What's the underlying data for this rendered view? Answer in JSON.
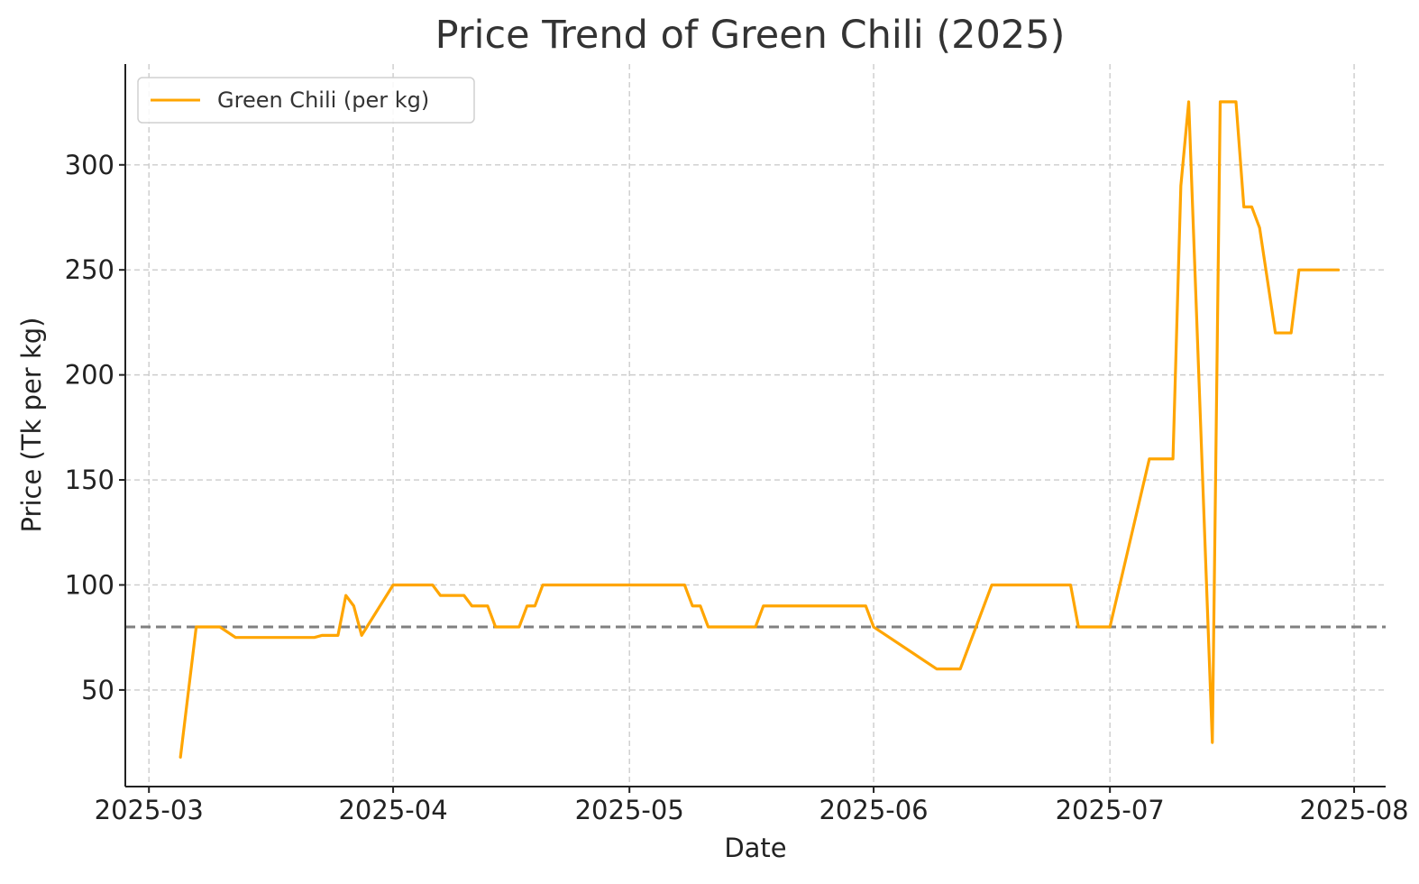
{
  "chart_data": {
    "type": "line",
    "title": "Price Trend of Green Chili (2025)",
    "xlabel": "Date",
    "ylabel": "Price (Tk per kg)",
    "x_axis_type": "date",
    "xlim": [
      "2025-02-26",
      "2025-08-05"
    ],
    "ylim": [
      4,
      348
    ],
    "x_ticks": [
      "2025-03-01",
      "2025-04-01",
      "2025-05-01",
      "2025-06-01",
      "2025-07-01",
      "2025-08-01"
    ],
    "x_tick_labels": [
      "2025-03",
      "2025-04",
      "2025-05",
      "2025-06",
      "2025-07",
      "2025-08"
    ],
    "y_ticks": [
      50,
      100,
      150,
      200,
      250,
      300
    ],
    "y_tick_labels": [
      "50",
      "100",
      "150",
      "200",
      "250",
      "300"
    ],
    "grid": true,
    "legend_position": "top-left",
    "series": [
      {
        "name": "Green Chili (per kg)",
        "color": "#ffa500",
        "points": [
          [
            "2025-03-05",
            18
          ],
          [
            "2025-03-07",
            80
          ],
          [
            "2025-03-10",
            80
          ],
          [
            "2025-03-12",
            75
          ],
          [
            "2025-03-22",
            75
          ],
          [
            "2025-03-23",
            76
          ],
          [
            "2025-03-25",
            76
          ],
          [
            "2025-03-26",
            95
          ],
          [
            "2025-03-27",
            90
          ],
          [
            "2025-03-28",
            76
          ],
          [
            "2025-04-01",
            100
          ],
          [
            "2025-04-06",
            100
          ],
          [
            "2025-04-07",
            95
          ],
          [
            "2025-04-10",
            95
          ],
          [
            "2025-04-11",
            90
          ],
          [
            "2025-04-13",
            90
          ],
          [
            "2025-04-14",
            80
          ],
          [
            "2025-04-17",
            80
          ],
          [
            "2025-04-18",
            90
          ],
          [
            "2025-04-19",
            90
          ],
          [
            "2025-04-20",
            100
          ],
          [
            "2025-05-08",
            100
          ],
          [
            "2025-05-09",
            90
          ],
          [
            "2025-05-10",
            90
          ],
          [
            "2025-05-11",
            80
          ],
          [
            "2025-05-17",
            80
          ],
          [
            "2025-05-18",
            90
          ],
          [
            "2025-05-31",
            90
          ],
          [
            "2025-06-01",
            80
          ],
          [
            "2025-06-09",
            60
          ],
          [
            "2025-06-12",
            60
          ],
          [
            "2025-06-16",
            100
          ],
          [
            "2025-06-26",
            100
          ],
          [
            "2025-06-27",
            80
          ],
          [
            "2025-07-01",
            80
          ],
          [
            "2025-07-06",
            160
          ],
          [
            "2025-07-09",
            160
          ],
          [
            "2025-07-10",
            290
          ],
          [
            "2025-07-11",
            330
          ],
          [
            "2025-07-14",
            25
          ],
          [
            "2025-07-15",
            330
          ],
          [
            "2025-07-17",
            330
          ],
          [
            "2025-07-18",
            280
          ],
          [
            "2025-07-19",
            280
          ],
          [
            "2025-07-20",
            270
          ],
          [
            "2025-07-22",
            220
          ],
          [
            "2025-07-24",
            220
          ],
          [
            "2025-07-25",
            250
          ],
          [
            "2025-07-30",
            250
          ]
        ]
      }
    ],
    "reference_lines": [
      {
        "type": "horizontal",
        "y": 80,
        "style": "dashed",
        "color": "#808080"
      }
    ]
  }
}
